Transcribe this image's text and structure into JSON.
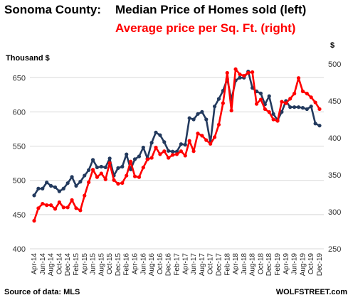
{
  "chart_data": {
    "type": "line",
    "title_left": "Sonoma County:",
    "title_main": "Median Price of Homes sold (left)",
    "subtitle": "Average price per Sq. Ft. (right)",
    "ylabel_left": "Thousand $",
    "ylabel_right": "$",
    "ylim_left": [
      400,
      670
    ],
    "ylim_right": [
      250,
      500
    ],
    "yticks_left": [
      400,
      450,
      500,
      550,
      600,
      650
    ],
    "yticks_right": [
      250,
      300,
      350,
      400,
      450,
      500
    ],
    "x_tick_labels": [
      "Apr-14",
      "Jun-14",
      "Aug-14",
      "Oct-14",
      "Dec-14",
      "Feb-15",
      "Apr-15",
      "Jun-15",
      "Aug-15",
      "Oct-15",
      "Dec-15",
      "Feb-16",
      "Apr-16",
      "Jun-16",
      "Aug-16",
      "Oct-16",
      "Dec-16",
      "Feb-17",
      "Apr-17",
      "Jun-17",
      "Aug-17",
      "Oct-17",
      "Dec-17",
      "Feb-18",
      "Apr-18",
      "Jun-18",
      "Aug-18",
      "Oct-18",
      "Dec-18",
      "Feb-19",
      "Apr-19",
      "Jun-19",
      "Aug-19",
      "Oct-19",
      "Dec-19"
    ],
    "x": [
      "Apr-14",
      "May-14",
      "Jun-14",
      "Jul-14",
      "Aug-14",
      "Sep-14",
      "Oct-14",
      "Nov-14",
      "Dec-14",
      "Jan-15",
      "Feb-15",
      "Mar-15",
      "Apr-15",
      "May-15",
      "Jun-15",
      "Jul-15",
      "Aug-15",
      "Sep-15",
      "Oct-15",
      "Nov-15",
      "Dec-15",
      "Jan-16",
      "Feb-16",
      "Mar-16",
      "Apr-16",
      "May-16",
      "Jun-16",
      "Jul-16",
      "Aug-16",
      "Sep-16",
      "Oct-16",
      "Nov-16",
      "Dec-16",
      "Jan-17",
      "Feb-17",
      "Mar-17",
      "Apr-17",
      "May-17",
      "Jun-17",
      "Jul-17",
      "Aug-17",
      "Sep-17",
      "Oct-17",
      "Nov-17",
      "Dec-17",
      "Jan-18",
      "Feb-18",
      "Mar-18",
      "Apr-18",
      "May-18",
      "Jun-18",
      "Jul-18",
      "Aug-18",
      "Sep-18",
      "Oct-18",
      "Nov-18",
      "Dec-18",
      "Jan-19",
      "Feb-19",
      "Mar-19",
      "Apr-19",
      "May-19",
      "Jun-19",
      "Jul-19",
      "Aug-19",
      "Sep-19",
      "Oct-19",
      "Nov-19",
      "Dec-19"
    ],
    "series": [
      {
        "name": "Median Price of Homes sold",
        "axis": "left",
        "color": "#233a5e",
        "values": [
          478,
          488,
          488,
          497,
          492,
          490,
          484,
          488,
          496,
          505,
          492,
          498,
          507,
          515,
          530,
          519,
          520,
          519,
          532,
          507,
          518,
          520,
          538,
          516,
          531,
          535,
          548,
          532,
          555,
          570,
          566,
          556,
          543,
          542,
          542,
          553,
          552,
          591,
          589,
          597,
          600,
          589,
          555,
          608,
          619,
          631,
          648,
          618,
          646,
          650,
          650,
          659,
          635,
          630,
          627,
          611,
          623,
          597,
          588,
          600,
          616,
          607,
          607,
          607,
          606,
          604,
          608,
          583,
          580
        ]
      },
      {
        "name": "Average price per Sq. Ft.",
        "axis": "right",
        "color": "#ff0000",
        "values": [
          288,
          305,
          311,
          309,
          309,
          304,
          313,
          306,
          306,
          316,
          305,
          302,
          322,
          340,
          357,
          347,
          352,
          344,
          366,
          343,
          338,
          339,
          349,
          368,
          348,
          347,
          360,
          371,
          373,
          387,
          378,
          382,
          373,
          377,
          378,
          382,
          376,
          396,
          382,
          406,
          403,
          397,
          392,
          401,
          418,
          447,
          488,
          437,
          493,
          486,
          484,
          488,
          489,
          446,
          452,
          439,
          435,
          425,
          423,
          449,
          447,
          453,
          460,
          481,
          463,
          460,
          455,
          448,
          439
        ]
      }
    ]
  },
  "footer": {
    "source": "Source of data: MLS",
    "brand": "WOLFSTREET.com"
  }
}
